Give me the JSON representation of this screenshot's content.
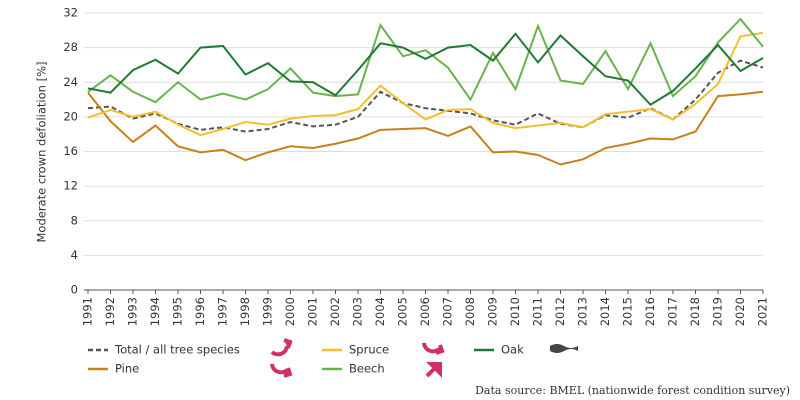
{
  "chart_data": {
    "type": "line",
    "y_label": "Moderate crown defoliation [%]",
    "categories": [
      "1991",
      "1992",
      "1993",
      "1994",
      "1995",
      "1996",
      "1997",
      "1998",
      "1999",
      "2000",
      "2001",
      "2002",
      "2003",
      "2004",
      "2005",
      "2006",
      "2007",
      "2008",
      "2009",
      "2010",
      "2011",
      "2012",
      "2013",
      "2014",
      "2015",
      "2016",
      "2017",
      "2018",
      "2019",
      "2020",
      "2021"
    ],
    "series": [
      {
        "name": "Total / all tree species",
        "color": "#555555",
        "dashed": true,
        "values": [
          21.0,
          21.2,
          19.8,
          20.4,
          19.2,
          18.5,
          18.8,
          18.3,
          18.6,
          19.4,
          18.9,
          19.1,
          20.0,
          22.9,
          21.6,
          21.0,
          20.7,
          20.4,
          19.6,
          19.1,
          20.4,
          19.2,
          18.8,
          20.2,
          19.9,
          21.0,
          19.7,
          22.0,
          25.1,
          26.5,
          25.7
        ]
      },
      {
        "name": "Pine",
        "color": "#c8801a",
        "values": [
          22.8,
          19.5,
          17.1,
          19.0,
          16.6,
          15.9,
          16.2,
          15.0,
          15.9,
          16.6,
          16.4,
          16.9,
          17.5,
          18.5,
          18.6,
          18.7,
          17.8,
          18.9,
          15.9,
          16.0,
          15.6,
          14.5,
          15.1,
          16.4,
          16.9,
          17.5,
          17.4,
          18.3,
          22.4,
          22.6,
          22.9
        ]
      },
      {
        "name": "Spruce",
        "color": "#f4bf2a",
        "values": [
          19.9,
          20.8,
          20.0,
          20.6,
          19.1,
          17.9,
          18.6,
          19.4,
          19.1,
          19.8,
          20.1,
          20.2,
          20.9,
          23.6,
          21.6,
          19.7,
          20.8,
          20.9,
          19.3,
          18.7,
          19.0,
          19.3,
          18.8,
          20.3,
          20.6,
          20.9,
          19.7,
          21.5,
          23.8,
          29.3,
          29.7
        ]
      },
      {
        "name": "Beech",
        "color": "#6ab34c",
        "values": [
          22.9,
          24.8,
          22.9,
          21.7,
          24.0,
          22.0,
          22.7,
          22.0,
          23.2,
          25.6,
          22.8,
          22.4,
          22.6,
          30.6,
          27.0,
          27.7,
          25.7,
          22.0,
          27.4,
          23.2,
          30.5,
          24.2,
          23.8,
          27.6,
          23.2,
          28.5,
          22.4,
          24.7,
          28.6,
          31.3,
          28.1
        ]
      },
      {
        "name": "Oak",
        "color": "#1e7a33",
        "values": [
          23.3,
          22.8,
          25.4,
          26.6,
          25.0,
          28.0,
          28.2,
          24.9,
          26.2,
          24.1,
          24.0,
          22.5,
          25.4,
          28.5,
          28.0,
          26.7,
          28.0,
          28.3,
          26.5,
          29.6,
          26.3,
          29.4,
          27.0,
          24.7,
          24.2,
          21.4,
          23.0,
          25.6,
          28.3,
          25.3,
          26.8
        ]
      }
    ],
    "ylim": [
      0,
      32
    ],
    "yticks": [
      0,
      4,
      8,
      12,
      16,
      20,
      24,
      28,
      32
    ],
    "grid": true,
    "source": "Data source: BMEL (nationwide forest condition survey)"
  }
}
